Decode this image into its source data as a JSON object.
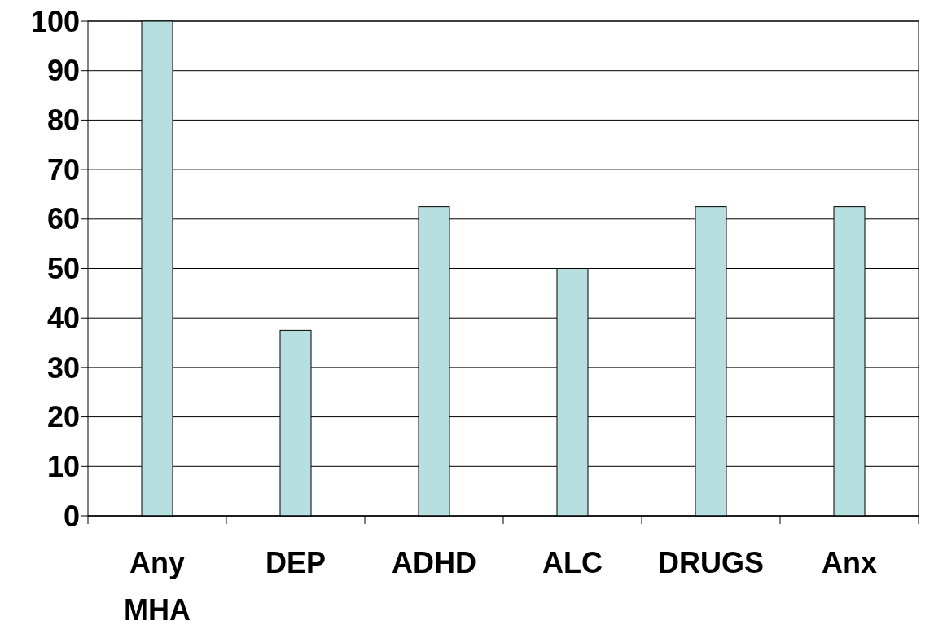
{
  "chart_data": {
    "type": "bar",
    "categories": [
      "Any MHA",
      "DEP",
      "ADHD",
      "ALC",
      "DRUGS",
      "Anx"
    ],
    "values": [
      100,
      37.5,
      62.5,
      50,
      62.5,
      62.5
    ],
    "color": "#b8dfe0",
    "ylim": [
      0,
      100
    ],
    "yticks": [
      0,
      10,
      20,
      30,
      40,
      50,
      60,
      70,
      80,
      90,
      100
    ],
    "grid": "y"
  }
}
